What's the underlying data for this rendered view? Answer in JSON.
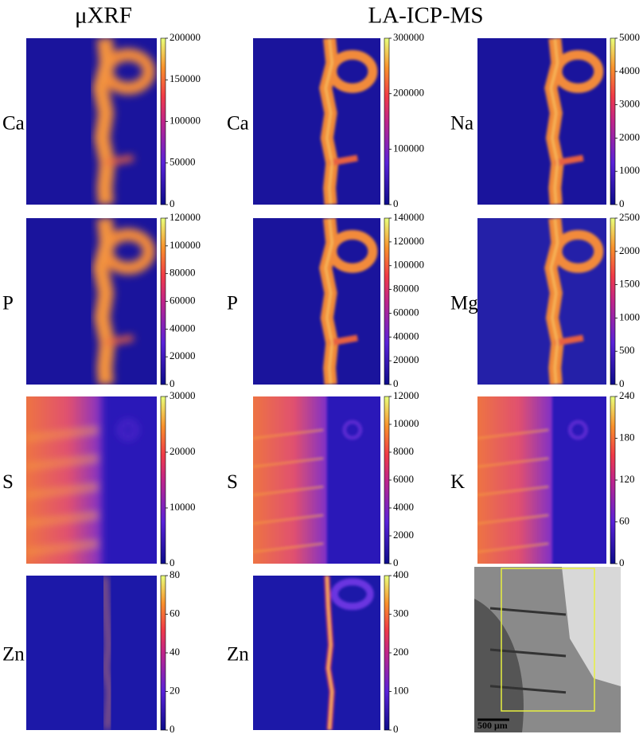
{
  "headers": [
    "μXRF",
    "LA-ICP-MS"
  ],
  "panels": [
    {
      "label": "Ca",
      "clim": [
        0,
        200000
      ],
      "cticks": [
        0,
        50000,
        100000,
        150000,
        200000
      ]
    },
    {
      "label": "Ca",
      "clim": [
        0,
        300000
      ],
      "cticks": [
        0,
        100000,
        200000,
        300000
      ]
    },
    {
      "label": "Na",
      "clim": [
        0,
        5000
      ],
      "cticks": [
        0,
        1000,
        2000,
        3000,
        4000,
        5000
      ]
    },
    {
      "label": "P",
      "clim": [
        0,
        120000
      ],
      "cticks": [
        0,
        20000,
        40000,
        60000,
        80000,
        100000,
        120000
      ]
    },
    {
      "label": "P",
      "clim": [
        0,
        140000
      ],
      "cticks": [
        0,
        20000,
        40000,
        60000,
        80000,
        100000,
        120000,
        140000
      ]
    },
    {
      "label": "Mg",
      "clim": [
        0,
        2500
      ],
      "cticks": [
        0,
        500,
        1000,
        1500,
        2000,
        2500
      ]
    },
    {
      "label": "S",
      "clim": [
        0,
        30000
      ],
      "cticks": [
        0,
        10000,
        20000,
        30000
      ]
    },
    {
      "label": "S",
      "clim": [
        0,
        12000
      ],
      "cticks": [
        0,
        2000,
        4000,
        6000,
        8000,
        10000,
        12000
      ]
    },
    {
      "label": "K",
      "clim": [
        0,
        240
      ],
      "cticks": [
        0,
        60,
        120,
        180,
        240
      ]
    },
    {
      "label": "Zn",
      "clim": [
        0,
        80
      ],
      "cticks": [
        0,
        20,
        40,
        60,
        80
      ]
    },
    {
      "label": "Zn",
      "clim": [
        0,
        400
      ],
      "cticks": [
        0,
        100,
        200,
        300,
        400
      ]
    }
  ],
  "micrograph": {
    "scale_bar": "500 μm"
  }
}
